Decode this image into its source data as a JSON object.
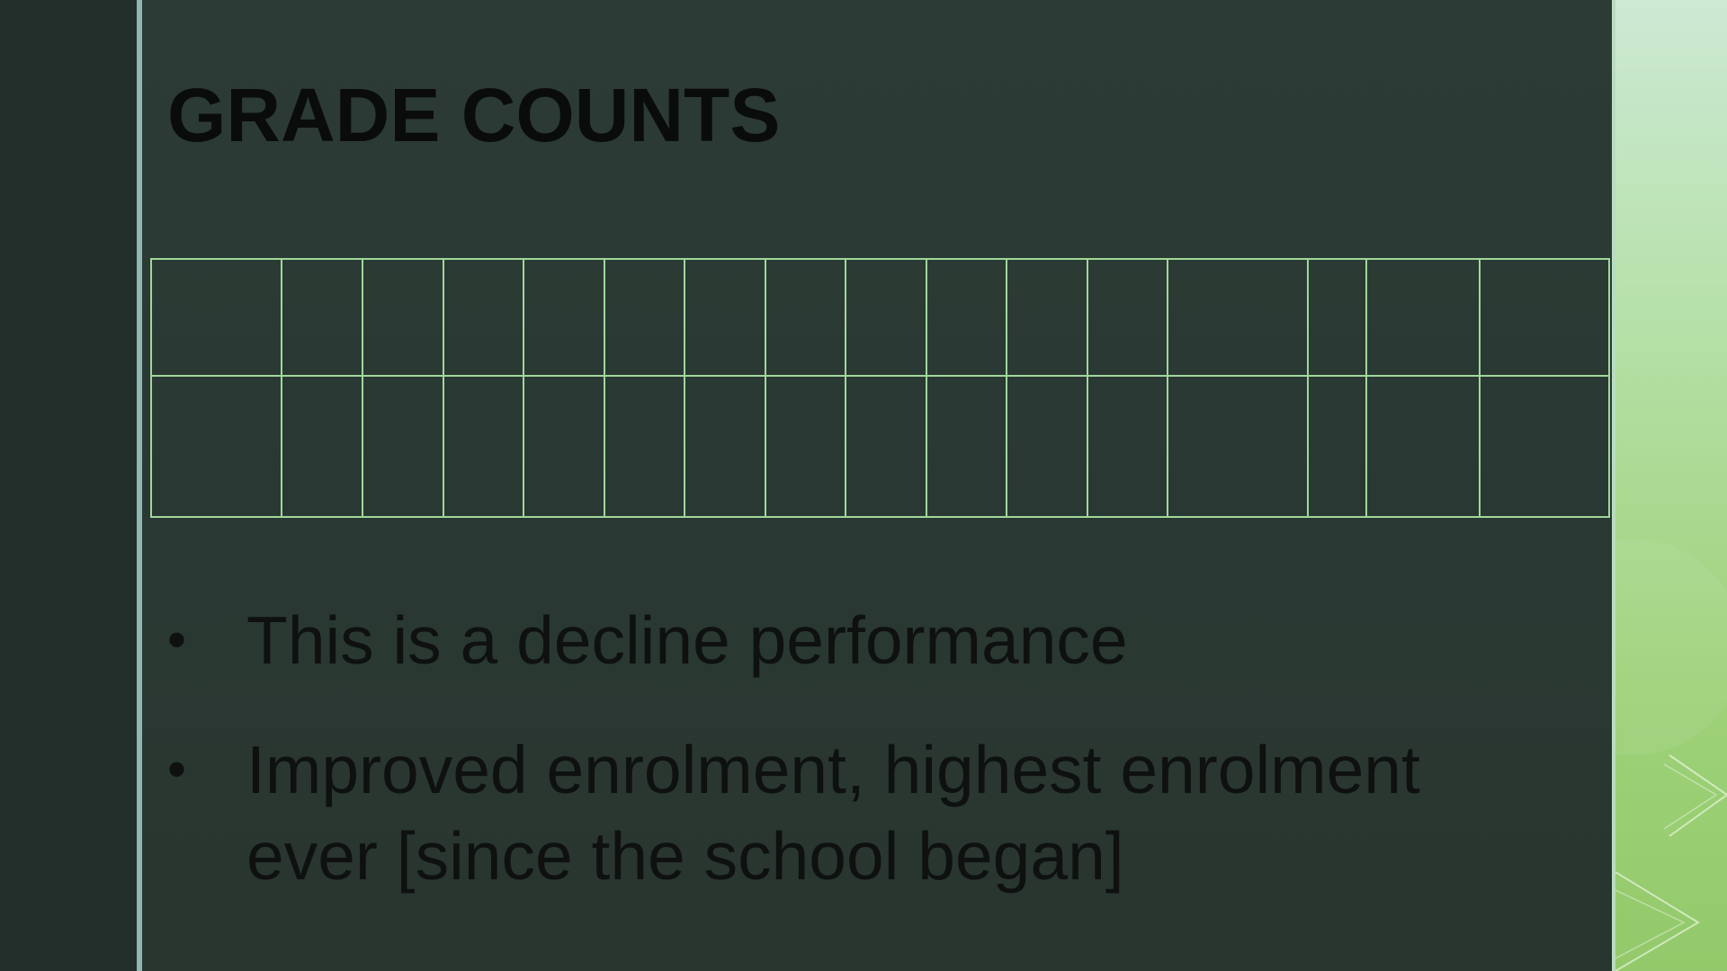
{
  "slide": {
    "title": "GRADE COUNTS",
    "table": {
      "rows": 2,
      "columns": 16,
      "cells": [
        [
          "",
          "",
          "",
          "",
          "",
          "",
          "",
          "",
          "",
          "",
          "",
          "",
          "",
          "",
          "",
          ""
        ],
        [
          "",
          "",
          "",
          "",
          "",
          "",
          "",
          "",
          "",
          "",
          "",
          "",
          "",
          "",
          "",
          ""
        ]
      ],
      "border_color": "#9fd89a"
    },
    "bullets": [
      {
        "marker": "•",
        "text": "This is a decline performance"
      },
      {
        "marker": "•",
        "text": "Improved enrolment, highest enrolment ever [since the school began]"
      }
    ]
  },
  "theme": {
    "background": "#2a3833",
    "left_band": "#222e2a",
    "left_rule": "#8fb6b4",
    "accent_panel": "#9fd27a",
    "text_color": "#0e1110"
  }
}
